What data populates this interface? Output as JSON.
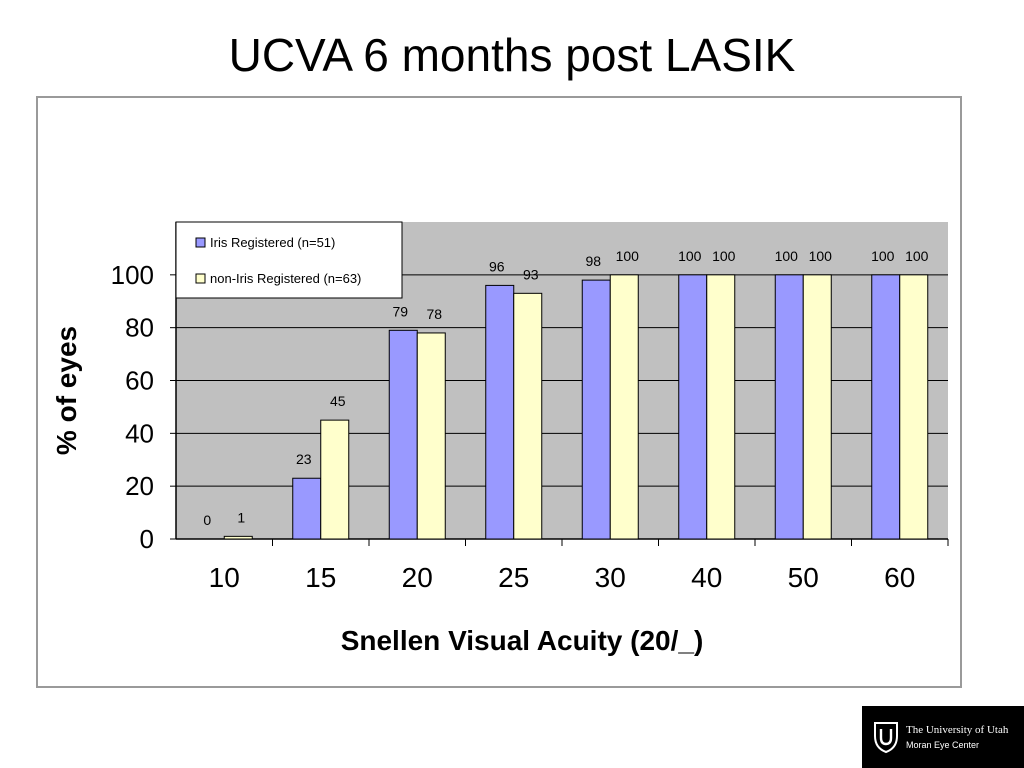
{
  "slide": {
    "title": "UCVA 6 months post LASIK"
  },
  "chart_data": {
    "type": "bar",
    "title": "",
    "xlabel": "Snellen Visual Acuity (20/_)",
    "ylabel": "% of eyes",
    "categories": [
      "10",
      "15",
      "20",
      "25",
      "30",
      "40",
      "50",
      "60"
    ],
    "series": [
      {
        "name": "Iris Registered (n=51)",
        "values": [
          0,
          23,
          79,
          96,
          98,
          100,
          100,
          100
        ],
        "color": "#9999ff"
      },
      {
        "name": "non-Iris Registered (n=63)",
        "values": [
          1,
          45,
          78,
          93,
          100,
          100,
          100,
          100
        ],
        "color": "#ffffcc"
      }
    ],
    "ylim": [
      0,
      120
    ],
    "yticks": [
      0,
      20,
      40,
      60,
      80,
      100
    ],
    "grid": true,
    "plot_background": "#c0c0c0",
    "legend_position": "top-left",
    "data_labels": true
  },
  "logo": {
    "line1": "The University of Utah",
    "line2": "Moran Eye Center"
  }
}
